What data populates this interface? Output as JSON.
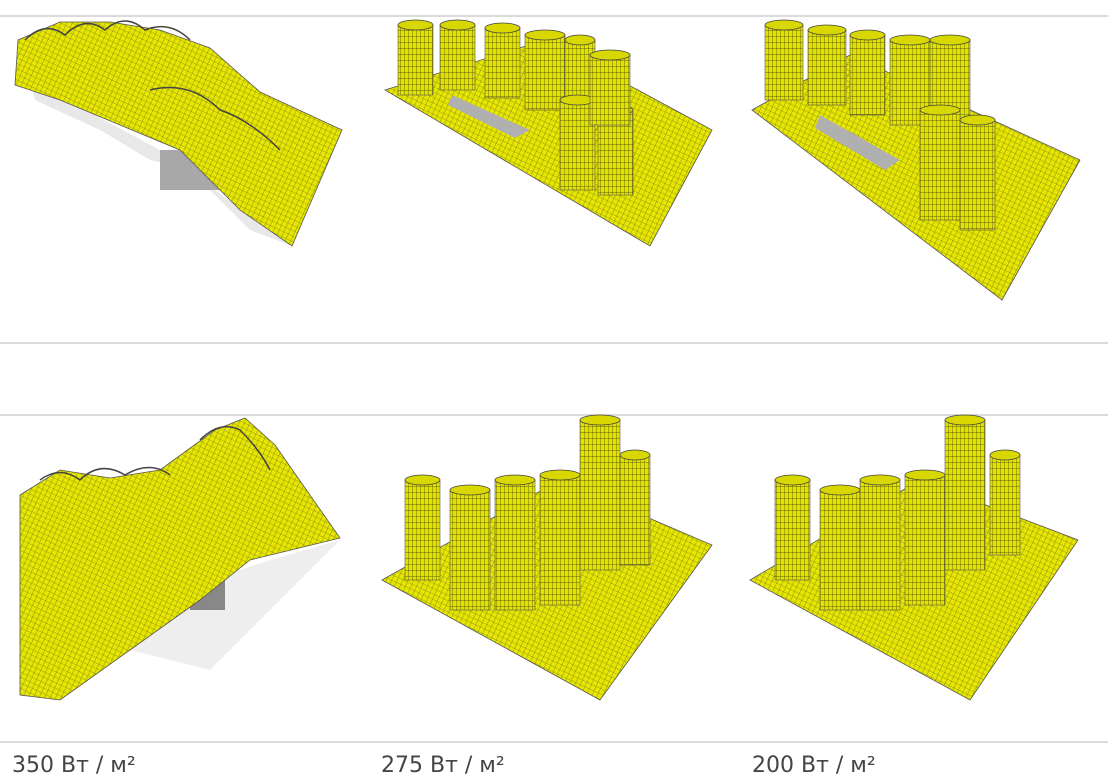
{
  "captions": [
    "350 Вт / м²",
    "275 Вт / м²",
    "200 Вт / м²"
  ]
}
